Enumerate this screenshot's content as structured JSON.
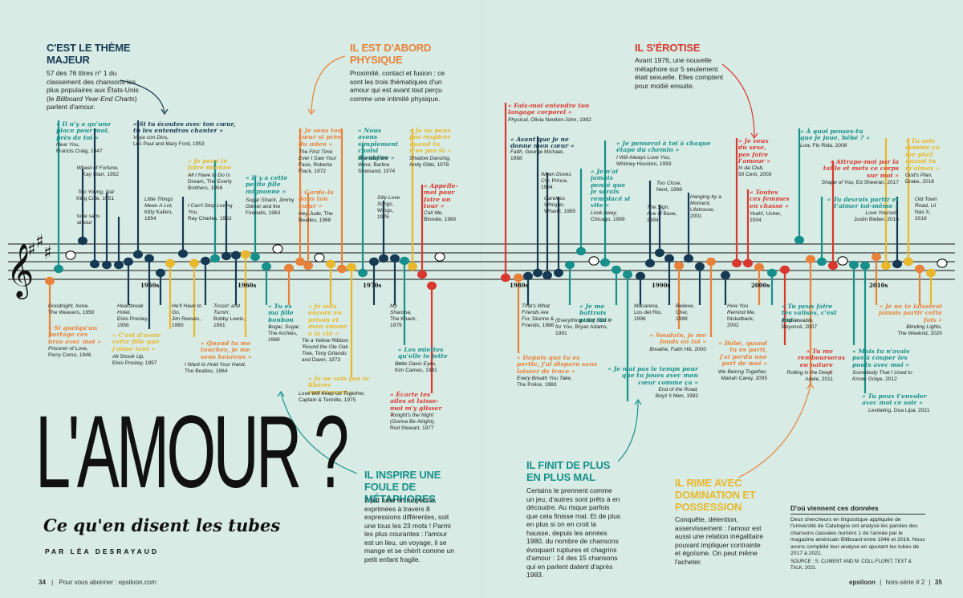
{
  "sections": {
    "theme": {
      "heading": "C'EST LE THÈME MAJEUR",
      "text1": "57 des 76 titres n° 1 du classement des chansons les plus populaires aux États-Unis (le ",
      "text_em": "Billboard Year-End Charts",
      "text2": ") parlent d'amour."
    },
    "physique": {
      "heading": "IL EST D'ABORD PHYSIQUE",
      "text": "Proximité, contact et fusion : ce sont les trois thématiques d'un amour qui est avant tout perçu comme une intimité physique."
    },
    "erotise": {
      "heading": "IL S'ÉROTISE",
      "text": "Avant 1976, une nouvelle métaphore sur 5 seulement était sexuelle. Elles comptent pour moitié ensuite."
    },
    "metaphores": {
      "heading": "IL INSPIRE UNE FOULE DE MÉTAPHORES",
      "text": "2 par tube en moyenne, exprimées à travers 8 expressions différentes, soit une tous les 23 mots ! Parmi les plus courantes : l'amour est un lieu, un voyage, il se mange et se chérit comme un petit enfant fragile."
    },
    "finit": {
      "heading": "IL FINIT DE PLUS EN PLUS MAL",
      "text": "Certains le prennent comme un jeu, d'autres sont prêts à en découdre. Au risque parfois que cela finisse mal. Et de plus en plus si on en croit la hausse, depuis les années 1980, du nombre de chansons évoquant ruptures et chagrins d'amour : 14 des 15 chansons qui en parlent datent d'après 1983."
    },
    "rime": {
      "heading": "IL RIME AVEC DOMINATION ET POSSESSION",
      "text": "Conquête, détention, asservissement : l'amour est aussi une relation inégalitaire pouvant impliquer contrainte et égoïsme. On peut même l'acheter."
    }
  },
  "title": {
    "main": "L'AMOUR ?",
    "subtitle": "Ce qu'en disent les tubes",
    "author": "PAR LÉA DESRAYAUD"
  },
  "decades": [
    "1950s",
    "1960s",
    "1970s",
    "1980s",
    "1990s",
    "2000s",
    "2010s"
  ],
  "source_box": {
    "heading": "D'où viennent ces données",
    "text": "Deux chercheurs en linguistique appliquée de l'université de Catalogne ont analysé les paroles des chansons classées numéro 1 de l'année par le magazine américain Billboard entre 1946 et 2016. Nous avons complété leur analyse en ajoutant les tubes de 2017 à 2021.",
    "source": "SOURCE : S. CLIMENT AND M. COLL-FLORIT, TEXT & TALK, 2021"
  },
  "footer": {
    "left_page": "34",
    "left_text": "Pour vous abonner : epsiloon.com",
    "brand": "epsiloon",
    "issue": "hors-série # 2",
    "right_page": "35"
  },
  "songs": {
    "a1": {
      "q": "« Il n'y a qu'une place pour moi, près de toi »",
      "s1": "Near You,",
      "s2": "Francis Craig, 1947"
    },
    "a2": {
      "q": "« Si tu écoutes avec ton cœur, tu les entendras chanter »",
      "s1": "Vaya con Dios,",
      "s2": "Les Paul and Mary Ford, 1953"
    },
    "a3": {
      "s1": "Wheel of Fortune,",
      "s2": "Kay Starr, 1952"
    },
    "a4": {
      "s1": "Too Young, Nat",
      "s2": "King Cole, 1951"
    },
    "a5": {
      "s1": "tube sans",
      "s2": "amour"
    },
    "a6": {
      "q": "« Je peux te faire mienne »",
      "s1": "All I Have to Do Is",
      "s2": "Dream, The Everly Brothers, 1958"
    },
    "a7": {
      "s1": "Little Things Mean A Lot,",
      "s2": "Kitty Kallen, 1954"
    },
    "a8": {
      "s1": "I Can't Stop Loving You,",
      "s2": "Ray Charles, 1962"
    },
    "a9": {
      "q": "« Il y a cette petite fille mignonne »",
      "s1": "Sugar Shack,",
      "s2": "Jimmy Gilmer and the Fireballs, 1963"
    },
    "a10": {
      "q": "« Je sens ton cœur si près du mien »",
      "s1": "The First Time Ever I Saw Your",
      "s2": "Face, Roberta Flack, 1972"
    },
    "a11": {
      "q": "« Garde-la dans ton cœur »",
      "s1": "Hey Jude,",
      "s2": "The Beatles, 1968"
    },
    "a12": {
      "q": "« Nous avons simplement choisi d'oublier »",
      "s1": "The Way We Were,",
      "s2": "Barbra Streisand, 1974"
    },
    "a13": {
      "q": "« Je ne peux pas respirer quand tu n'es pas là »",
      "s1": "Shadow Dancing,",
      "s2": "Andy Gibb, 1978"
    },
    "a14": {
      "s1": "Silly Love Songs,",
      "s2": "Wings, 1976"
    },
    "a15": {
      "q": "« Appelle-moi pour faire un tour »",
      "s1": "Call Me,",
      "s2": "Blondie, 1980"
    },
    "b1": {
      "s1": "Goodnight, Irene,",
      "s2": "The Weavers, 1950"
    },
    "b2": {
      "q": "« Si quelqu'un partage ces bras avec moi »",
      "s1": "Prisoner of Love,",
      "s2": "Perry Como, 1946"
    },
    "b3": {
      "s1": "Heartbreak Hotel,",
      "s2": "Elvis Presley, 1956"
    },
    "b4": {
      "q": "« C'est d'avoir cette fille que j'aime tant »",
      "s1": "All Shook Up,",
      "s2": "Elvis Presley, 1957"
    },
    "b5": {
      "s1": "He'll Have to Go,",
      "s2": "Jim Reeves, 1960"
    },
    "b6": {
      "s1": "Tossin' and Turnin',",
      "s2": "Bobby Lewis, 1961"
    },
    "b7": {
      "q": "« Quand tu me touches, je me sens heureux »",
      "s1": "I Want to Hold Your Hand,",
      "s2": "The Beatles, 1964"
    },
    "b8": {
      "q": "« Tu es ma fille bonbon »",
      "s1": "Sugar, Sugar,",
      "s2": "The Archies, 1969"
    },
    "b9": {
      "q": "« Je suis encore en prison et mon amour a la clé »",
      "s1": "Tie a Yellow Ribbon 'Round the Ole Oak Tree,",
      "s2": "Tony Orlando and Dawn, 1973"
    },
    "b10": {
      "q": "« Je ne vais pas te libérer maintenant »",
      "s1": "Love Will Keep Us Together,",
      "s2": "Captain & Tennille, 1975"
    },
    "b11": {
      "s1": "My Sharona,",
      "s2": "The Knack, 1979"
    },
    "b12": {
      "q": "« Les miettes qu'elle te jette »",
      "s1": "Bette Davis Eyes,",
      "s2": "Kim Carnes, 1981"
    },
    "b13": {
      "q": "« Écarte tes ailes et laisse-moi m'y glisser »",
      "s1": "Tonight's the Night (Gonna Be Alright),",
      "s2": "Rod Stewart, 1977"
    },
    "c1": {
      "q": "« Fais-moi entendre ton langage corporel »",
      "s1": "Physical,",
      "s2": "Olivia Newton-John, 1982"
    },
    "c2": {
      "q": "« Avant que je ne donne mon cœur »",
      "s1": "Faith,",
      "s2": "George Michael, 1988"
    },
    "c3": {
      "s1": "When Doves Cry,",
      "s2": "Prince, 1984"
    },
    "c4": {
      "s1": "Careless Whisper,",
      "s2": "Wham!, 1985"
    },
    "c5": {
      "q": "« Je n'ai jamais pensé que je serais remplacé si vite »",
      "s1": "Look Away,",
      "s2": "Chicago, 1989"
    },
    "c6": {
      "q": "« Je penserai à toi à chaque étape du chemin »",
      "s1": "I Will Always Love You,",
      "s2": "Whitney Houston, 1993"
    },
    "c7": {
      "s1": "Too Close,",
      "s2": "Next, 1998"
    },
    "c8": {
      "s1": "The Sign,",
      "s2": "Ace of Base, 1994"
    },
    "c9": {
      "s1": "Hanging by a Moment,",
      "s2": "Lifehouse, 2001"
    },
    "c10": {
      "q": "« Je veux du sexe, pas faire l'amour »",
      "s1": "In da Club,",
      "s2": "50 Cent, 2003"
    },
    "c11": {
      "q": "« Toutes ces femmes en chasse »",
      "s1": "Yeah!,",
      "s2": "Usher, 2004"
    },
    "c12": {
      "q": "« À quoi penses-tu que je joue, bébé ? »",
      "s1": "Low,",
      "s2": "Flo Rida, 2008"
    },
    "c13": {
      "q": "« Attrape-moi par la taille et mets ce corps sur moi »",
      "s1": "Shape of You,",
      "s2": "Ed Sheeran, 2017"
    },
    "c14": {
      "q": "« Tu devrais partir et t'aimer toi-même »",
      "s1": "Love Yourself,",
      "s2": "Justin Bieber, 2016"
    },
    "c15": {
      "q": "« Tu sais comme ça me plaît quand tu m'aimes »",
      "s1": "God's Plan,",
      "s2": "Drake, 2018"
    },
    "c16": {
      "s1": "Old Town Road,",
      "s2": "Lil Nas X, 2019"
    },
    "d1": {
      "s1": "That's What Friends Are For,",
      "s2": "Dionne & Friends, 1986"
    },
    "d2": {
      "q": "« Je me battrais pour toi »",
      "s1": "(Everything I Do) I Do It for You,",
      "s2": "Bryan Adams, 1991"
    },
    "d3": {
      "q": "« Depuis que tu es partie, j'ai disparu sans laisser de trace »",
      "s1": "Every Breath You Take,",
      "s2": "The Police, 1983"
    },
    "d4": {
      "s1": "Macarena,",
      "s2": "Los del Rio, 1996"
    },
    "d5": {
      "s1": "Believe,",
      "s2": "Cher, 1999"
    },
    "d6": {
      "s1": "How You Remind Me,",
      "s2": "Nickelback, 2002"
    },
    "d7": {
      "q": "« Soudain, je me fonds en toi »",
      "s1": "Breathe,",
      "s2": "Faith Hill, 2000"
    },
    "d8": {
      "q": "« Je n'ai pas le temps pour que tu joues avec mon cœur comme ça »",
      "s1": "End of the Road,",
      "s2": "Boyz II Men, 1992"
    },
    "d9": {
      "q": "« Bébé, quand tu es parti, j'ai perdu une part de moi »",
      "s1": "We Belong Together,",
      "s2": "Mariah Carey, 2005"
    },
    "d10": {
      "q": "« Tu peux faire tes valises, c'est fini »",
      "s1": "Irreplaceable,",
      "s2": "Beyoncé, 2007"
    },
    "d11": {
      "q": "« Tu me rembourseras en nature »",
      "s1": "Rolling in the Deep,",
      "s2": "Adele, 2011"
    },
    "d12": {
      "q": "« Je ne te laisserai jamais partir cette fois »",
      "s1": "Blinding Lights,",
      "s2": "The Weeknd, 2020"
    },
    "d13": {
      "q": "« Mais tu n'avais pas à couper les ponts avec moi »",
      "s1": "Somebody That I Used to Know,",
      "s2": "Gotye, 2012"
    },
    "d14": {
      "q": "« Tu peux t'envoler avec moi ce soir »",
      "s1": "Levitating,",
      "s2": "Dua Lipa, 2021"
    }
  },
  "colors": {
    "teal": "#17908c",
    "orange": "#e8823a",
    "red": "#d8382e",
    "yellow": "#e8b72c",
    "navy": "#163a54",
    "background": "#d8ebe4"
  }
}
